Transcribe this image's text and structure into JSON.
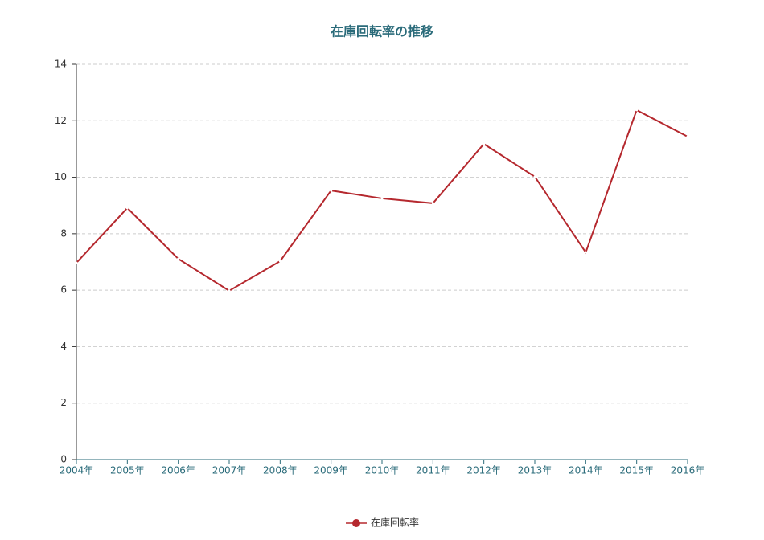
{
  "chart_data": {
    "type": "line",
    "title": "在庫回転率の推移",
    "categories": [
      "2004年",
      "2005年",
      "2006年",
      "2007年",
      "2008年",
      "2009年",
      "2010年",
      "2011年",
      "2012年",
      "2013年",
      "2014年",
      "2015年",
      "2016年"
    ],
    "series": [
      {
        "name": "在庫回転率",
        "color": "#b5282e",
        "values": [
          6.97,
          8.91,
          7.11,
          5.98,
          7.03,
          9.53,
          9.25,
          9.08,
          11.18,
          10.02,
          7.34,
          12.38,
          11.44
        ]
      }
    ],
    "ylim": [
      0,
      14
    ],
    "yticks": [
      0,
      2,
      4,
      6,
      8,
      10,
      12,
      14
    ],
    "grid": true
  }
}
